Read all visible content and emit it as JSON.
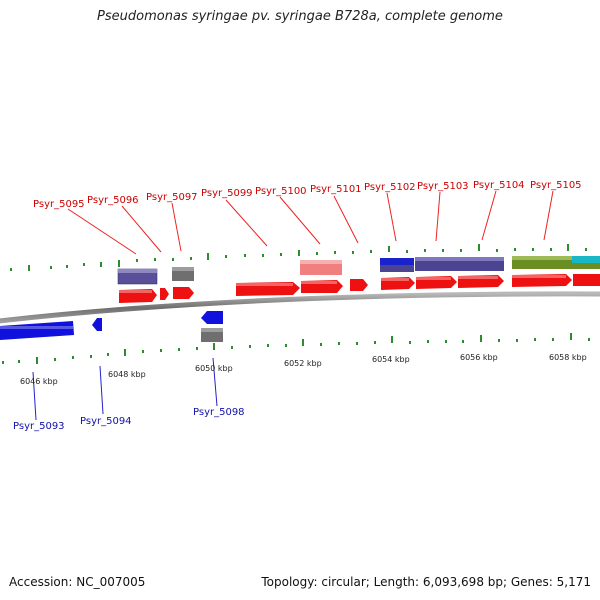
{
  "title": "Pseudomonas syringae pv. syringae B728a, complete genome",
  "footer": {
    "accession": "Accession: NC_007005",
    "summary": "Topology: circular; Length: 6,093,698 bp; Genes: 5,171"
  },
  "colors": {
    "forward_gene": "#ee1111",
    "reverse_gene": "#1111dd",
    "label_top": "#cc0000",
    "label_bottom": "#1111aa",
    "backbone": "#8a8a8a",
    "tick": "#228822"
  },
  "scale_ticks": [
    "6046 kbp",
    "6048 kbp",
    "6050 kbp",
    "6052 kbp",
    "6054 kbp",
    "6056 kbp",
    "6058 kbp"
  ],
  "top_labels": [
    "Psyr_5095",
    "Psyr_5096",
    "Psyr_5097",
    "Psyr_5099",
    "Psyr_5100",
    "Psyr_5101",
    "Psyr_5102",
    "Psyr_5103",
    "Psyr_5104",
    "Psyr_5105"
  ],
  "bottom_labels": [
    "Psyr_5093",
    "Psyr_5094",
    "Psyr_5098"
  ]
}
